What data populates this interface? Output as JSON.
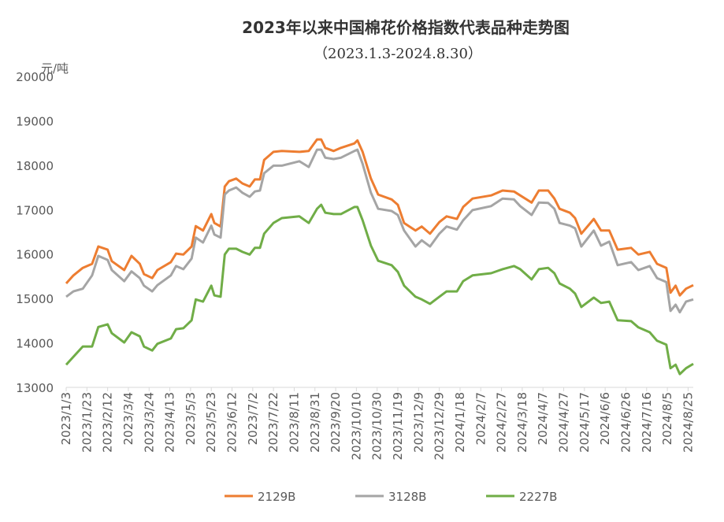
{
  "chart_data": {
    "type": "line",
    "title": "2023年以来中国棉花价格指数代表品种走势图",
    "subtitle": "（2023.1.3-2024.8.30）",
    "ylabel": "元/吨",
    "ylim": [
      13000,
      20000
    ],
    "yticks": [
      13000,
      14000,
      15000,
      16000,
      17000,
      18000,
      19000,
      20000
    ],
    "x_unit": "days since 2023/1/3",
    "xlim": [
      0,
      605
    ],
    "xtick_step_days": 20,
    "xtick_labels": [
      "2023/1/3",
      "2023/1/23",
      "2023/2/12",
      "2023/3/4",
      "2023/3/24",
      "2023/4/13",
      "2023/5/3",
      "2023/5/23",
      "2023/6/12",
      "2023/7/2",
      "2023/7/22",
      "2023/8/11",
      "2023/8/31",
      "2023/9/20",
      "2023/10/10",
      "2023/10/30",
      "2023/11/19",
      "2023/12/9",
      "2023/12/29",
      "2024/1/18",
      "2024/2/7",
      "2024/2/27",
      "2024/3/18",
      "2024/4/7",
      "2024/4/27",
      "2024/5/17",
      "2024/6/6",
      "2024/6/26",
      "2024/7/16",
      "2024/8/5",
      "2024/8/25"
    ],
    "grid": false,
    "legend_position": "bottom",
    "x": [
      0,
      7,
      16,
      25,
      31,
      40,
      44,
      56,
      63,
      71,
      75,
      83,
      88,
      101,
      106,
      113,
      121,
      125,
      132,
      140,
      143,
      149,
      153,
      157,
      164,
      170,
      177,
      182,
      187,
      191,
      200,
      208,
      225,
      234,
      242,
      246,
      250,
      258,
      265,
      278,
      281,
      286,
      294,
      301,
      314,
      320,
      326,
      337,
      343,
      351,
      360,
      367,
      377,
      383,
      392,
      410,
      421,
      432,
      438,
      449,
      456,
      465,
      471,
      476,
      486,
      491,
      497,
      509,
      516,
      524,
      532,
      545,
      552,
      563,
      570,
      579,
      583,
      588,
      592,
      598,
      605
    ],
    "series": [
      {
        "name": "2129B",
        "color": "#ED7D31",
        "values": [
          15340,
          15520,
          15690,
          15780,
          16170,
          16100,
          15840,
          15640,
          15960,
          15780,
          15550,
          15460,
          15640,
          15820,
          16010,
          15990,
          16170,
          16630,
          16530,
          16900,
          16700,
          16620,
          17520,
          17640,
          17700,
          17590,
          17520,
          17680,
          17680,
          18120,
          18300,
          18320,
          18300,
          18320,
          18580,
          18580,
          18390,
          18320,
          18390,
          18490,
          18560,
          18300,
          17700,
          17340,
          17230,
          17110,
          16700,
          16530,
          16620,
          16460,
          16720,
          16850,
          16790,
          17060,
          17250,
          17320,
          17430,
          17410,
          17320,
          17160,
          17430,
          17430,
          17250,
          17020,
          16930,
          16810,
          16460,
          16790,
          16530,
          16530,
          16100,
          16140,
          15990,
          16050,
          15780,
          15690,
          15130,
          15290,
          15070,
          15220,
          15300
        ]
      },
      {
        "name": "3128B",
        "color": "#A5A5A5",
        "values": [
          15040,
          15160,
          15220,
          15520,
          15960,
          15870,
          15640,
          15390,
          15610,
          15460,
          15290,
          15160,
          15300,
          15520,
          15730,
          15660,
          15900,
          16370,
          16260,
          16640,
          16440,
          16370,
          17340,
          17430,
          17500,
          17380,
          17290,
          17410,
          17430,
          17820,
          17990,
          17990,
          18090,
          17960,
          18350,
          18350,
          18170,
          18140,
          18170,
          18320,
          18350,
          18030,
          17380,
          17020,
          16970,
          16880,
          16530,
          16170,
          16310,
          16170,
          16460,
          16620,
          16550,
          16760,
          16990,
          17080,
          17250,
          17230,
          17080,
          16880,
          17160,
          17150,
          17020,
          16700,
          16640,
          16580,
          16170,
          16530,
          16190,
          16280,
          15750,
          15820,
          15640,
          15730,
          15460,
          15370,
          14720,
          14860,
          14690,
          14930,
          14980
        ]
      },
      {
        "name": "2227B",
        "color": "#70AD47",
        "values": [
          13510,
          13690,
          13920,
          13920,
          14360,
          14420,
          14220,
          14010,
          14240,
          14150,
          13920,
          13830,
          13980,
          14100,
          14310,
          14330,
          14510,
          14980,
          14930,
          15290,
          15070,
          15040,
          15990,
          16120,
          16120,
          16050,
          15990,
          16140,
          16140,
          16460,
          16700,
          16810,
          16850,
          16700,
          17020,
          17110,
          16930,
          16900,
          16900,
          17060,
          17060,
          16760,
          16190,
          15850,
          15750,
          15600,
          15290,
          15040,
          14980,
          14880,
          15040,
          15160,
          15160,
          15390,
          15520,
          15570,
          15660,
          15730,
          15660,
          15430,
          15660,
          15690,
          15570,
          15340,
          15220,
          15110,
          14810,
          15020,
          14900,
          14930,
          14510,
          14490,
          14350,
          14240,
          14050,
          13960,
          13430,
          13510,
          13300,
          13430,
          13530
        ]
      }
    ]
  }
}
